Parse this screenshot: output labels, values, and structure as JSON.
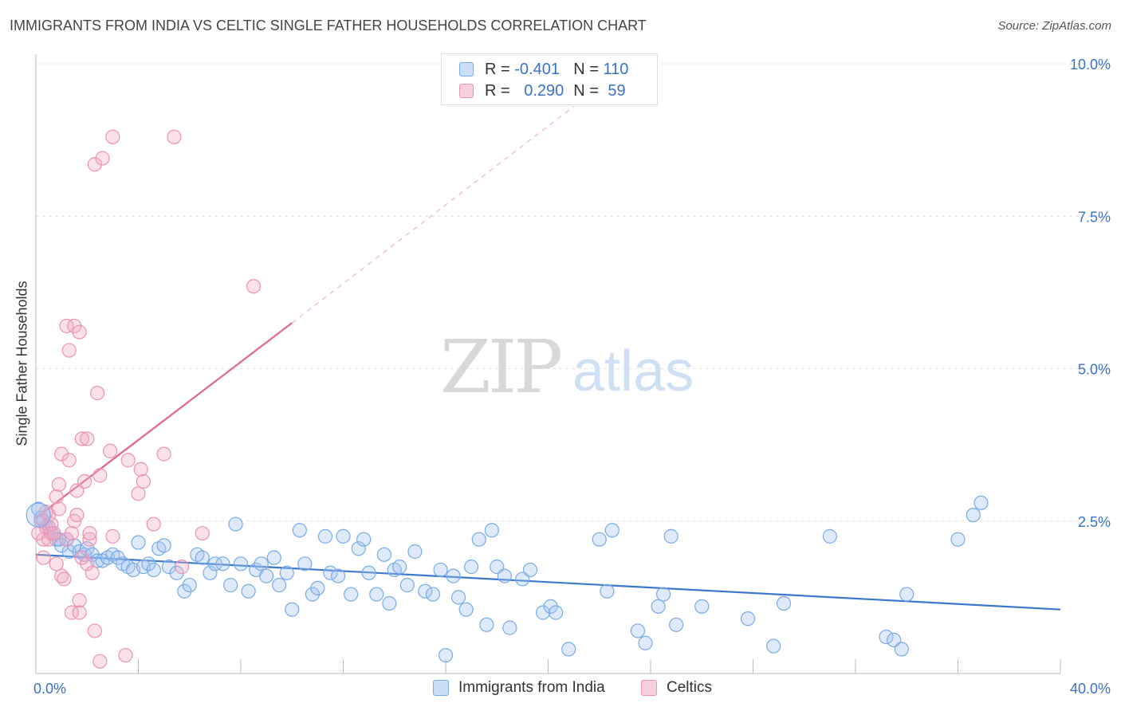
{
  "chart_data": {
    "type": "scatter",
    "title": "IMMIGRANTS FROM INDIA VS CELTIC SINGLE FATHER HOUSEHOLDS CORRELATION CHART",
    "source": "Source: ZipAtlas.com",
    "ylabel": "Single Father Households",
    "xlabel": "",
    "x_ticks": [
      "0.0%",
      "40.0%"
    ],
    "y_ticks": [
      {
        "value": 2.5,
        "label": "2.5%"
      },
      {
        "value": 5.0,
        "label": "5.0%"
      },
      {
        "value": 7.5,
        "label": "7.5%"
      },
      {
        "value": 10.0,
        "label": "10.0%"
      }
    ],
    "xlim": [
      0,
      40
    ],
    "ylim": [
      0,
      10
    ],
    "grid": true,
    "legend_placement": "top-center",
    "watermark": "ZIPatlas",
    "series": [
      {
        "name": "Immigrants from India",
        "color": "#7aaae6",
        "fill": "rgba(160,195,240,0.35)",
        "line_color": "#3a78cc",
        "R": "-0.401",
        "N": "110",
        "trend": {
          "x0": 0,
          "y0": 1.95,
          "x1": 40,
          "y1": 1.05
        },
        "points": [
          [
            0.1,
            2.7
          ],
          [
            0.3,
            2.5
          ],
          [
            0.5,
            2.4
          ],
          [
            0.7,
            2.3
          ],
          [
            0.8,
            2.2
          ],
          [
            1.0,
            2.1
          ],
          [
            1.2,
            2.2
          ],
          [
            1.3,
            2.0
          ],
          [
            1.5,
            2.1
          ],
          [
            1.7,
            2.0
          ],
          [
            1.9,
            1.95
          ],
          [
            2.0,
            2.05
          ],
          [
            2.2,
            1.95
          ],
          [
            2.4,
            1.85
          ],
          [
            2.6,
            1.85
          ],
          [
            2.8,
            1.9
          ],
          [
            3.0,
            1.95
          ],
          [
            3.2,
            1.9
          ],
          [
            3.4,
            1.8
          ],
          [
            3.6,
            1.75
          ],
          [
            3.8,
            1.7
          ],
          [
            4.0,
            2.15
          ],
          [
            4.2,
            1.75
          ],
          [
            4.4,
            1.8
          ],
          [
            4.6,
            1.7
          ],
          [
            4.8,
            2.05
          ],
          [
            5.0,
            2.1
          ],
          [
            5.2,
            1.75
          ],
          [
            5.5,
            1.65
          ],
          [
            5.8,
            1.35
          ],
          [
            6.0,
            1.45
          ],
          [
            6.3,
            1.95
          ],
          [
            6.5,
            1.9
          ],
          [
            6.8,
            1.65
          ],
          [
            7.0,
            1.8
          ],
          [
            7.3,
            1.8
          ],
          [
            7.6,
            1.45
          ],
          [
            7.8,
            2.45
          ],
          [
            8.0,
            1.8
          ],
          [
            8.3,
            1.35
          ],
          [
            8.6,
            1.7
          ],
          [
            8.8,
            1.8
          ],
          [
            9.0,
            1.6
          ],
          [
            9.3,
            1.9
          ],
          [
            9.5,
            1.45
          ],
          [
            9.8,
            1.65
          ],
          [
            10.0,
            1.05
          ],
          [
            10.3,
            2.35
          ],
          [
            10.5,
            1.8
          ],
          [
            10.8,
            1.3
          ],
          [
            11.0,
            1.4
          ],
          [
            11.3,
            2.25
          ],
          [
            11.5,
            1.65
          ],
          [
            11.8,
            1.6
          ],
          [
            12.0,
            2.25
          ],
          [
            12.3,
            1.3
          ],
          [
            12.6,
            2.05
          ],
          [
            12.8,
            2.2
          ],
          [
            13.0,
            1.65
          ],
          [
            13.3,
            1.3
          ],
          [
            13.6,
            1.95
          ],
          [
            13.8,
            1.15
          ],
          [
            14.0,
            1.7
          ],
          [
            14.2,
            1.75
          ],
          [
            14.5,
            1.45
          ],
          [
            14.8,
            2.0
          ],
          [
            15.2,
            1.35
          ],
          [
            15.5,
            1.3
          ],
          [
            15.8,
            1.7
          ],
          [
            16.0,
            0.3
          ],
          [
            16.3,
            1.6
          ],
          [
            16.5,
            1.25
          ],
          [
            16.8,
            1.05
          ],
          [
            17.0,
            1.75
          ],
          [
            17.3,
            2.2
          ],
          [
            17.6,
            0.8
          ],
          [
            17.8,
            2.35
          ],
          [
            18.0,
            1.75
          ],
          [
            18.3,
            1.6
          ],
          [
            18.5,
            0.75
          ],
          [
            19.0,
            1.55
          ],
          [
            19.3,
            1.7
          ],
          [
            19.8,
            1.0
          ],
          [
            20.1,
            1.1
          ],
          [
            20.3,
            1.0
          ],
          [
            20.8,
            0.4
          ],
          [
            22.0,
            2.2
          ],
          [
            22.3,
            1.35
          ],
          [
            22.5,
            2.35
          ],
          [
            23.5,
            0.7
          ],
          [
            23.8,
            0.5
          ],
          [
            24.3,
            1.1
          ],
          [
            24.5,
            1.3
          ],
          [
            24.8,
            2.25
          ],
          [
            25.0,
            0.8
          ],
          [
            26.0,
            1.1
          ],
          [
            27.8,
            0.9
          ],
          [
            28.8,
            0.45
          ],
          [
            29.2,
            1.15
          ],
          [
            31.0,
            2.25
          ],
          [
            33.2,
            0.6
          ],
          [
            33.5,
            0.55
          ],
          [
            33.8,
            0.4
          ],
          [
            34.0,
            1.3
          ],
          [
            36.0,
            2.2
          ],
          [
            36.6,
            2.6
          ],
          [
            36.9,
            2.8
          ],
          [
            0.2,
            2.55
          ],
          [
            0.6,
            2.3
          ],
          [
            0.9,
            2.2
          ]
        ]
      },
      {
        "name": "Celtics",
        "color": "#ec93b1",
        "fill": "rgba(240,170,195,0.35)",
        "line_color": "#e06792",
        "R": "0.290",
        "N": "59",
        "trend": {
          "x0": 0,
          "y0": 2.55,
          "x1": 10,
          "y1": 5.75
        },
        "trend_extended": {
          "x0": 10,
          "y0": 5.75,
          "x1": 21,
          "y1": 9.3
        },
        "points": [
          [
            0.1,
            2.3
          ],
          [
            0.2,
            2.5
          ],
          [
            0.3,
            2.2
          ],
          [
            0.3,
            1.9
          ],
          [
            0.4,
            2.4
          ],
          [
            0.5,
            2.6
          ],
          [
            0.5,
            2.2
          ],
          [
            0.6,
            2.3
          ],
          [
            0.7,
            2.3
          ],
          [
            0.8,
            1.8
          ],
          [
            0.8,
            2.9
          ],
          [
            0.9,
            2.7
          ],
          [
            0.9,
            3.1
          ],
          [
            1.0,
            3.6
          ],
          [
            1.0,
            1.6
          ],
          [
            1.1,
            1.55
          ],
          [
            1.2,
            5.7
          ],
          [
            1.2,
            2.2
          ],
          [
            1.3,
            5.3
          ],
          [
            1.3,
            3.5
          ],
          [
            1.4,
            1.0
          ],
          [
            1.4,
            2.3
          ],
          [
            1.5,
            5.7
          ],
          [
            1.5,
            2.5
          ],
          [
            1.6,
            3.0
          ],
          [
            1.6,
            2.6
          ],
          [
            1.7,
            5.6
          ],
          [
            1.7,
            1.0
          ],
          [
            1.7,
            1.2
          ],
          [
            1.8,
            3.85
          ],
          [
            1.8,
            1.9
          ],
          [
            1.9,
            3.15
          ],
          [
            2.0,
            3.85
          ],
          [
            2.0,
            1.8
          ],
          [
            2.1,
            2.2
          ],
          [
            2.1,
            2.3
          ],
          [
            2.2,
            1.65
          ],
          [
            2.3,
            8.35
          ],
          [
            2.3,
            0.7
          ],
          [
            2.4,
            4.6
          ],
          [
            2.5,
            0.2
          ],
          [
            2.5,
            3.25
          ],
          [
            2.6,
            8.45
          ],
          [
            2.9,
            3.65
          ],
          [
            3.0,
            2.25
          ],
          [
            3.0,
            8.8
          ],
          [
            3.5,
            0.3
          ],
          [
            3.6,
            3.5
          ],
          [
            4.0,
            2.95
          ],
          [
            4.1,
            3.35
          ],
          [
            4.2,
            3.15
          ],
          [
            4.6,
            2.45
          ],
          [
            5.0,
            3.6
          ],
          [
            5.4,
            8.8
          ],
          [
            5.7,
            1.75
          ],
          [
            6.5,
            2.3
          ],
          [
            8.5,
            6.35
          ],
          [
            0.4,
            2.65
          ],
          [
            0.6,
            2.45
          ]
        ]
      }
    ]
  }
}
